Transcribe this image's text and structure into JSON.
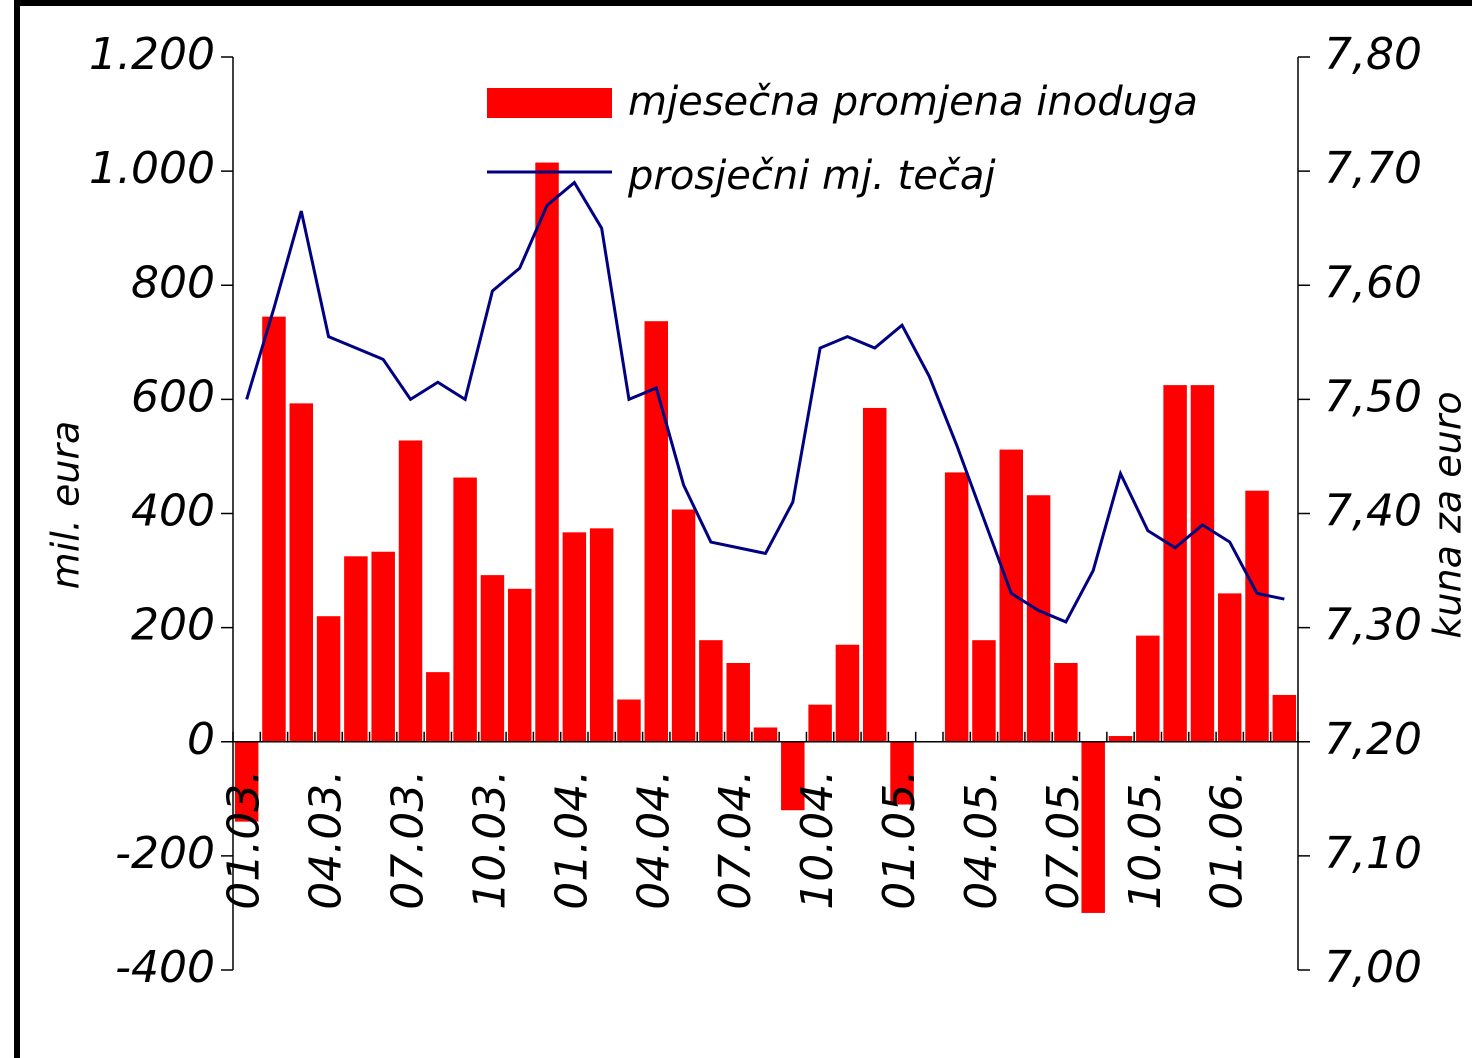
{
  "chart_data": {
    "type": "bar_line",
    "categories": [
      "01.03.",
      null,
      null,
      "04.03.",
      null,
      null,
      "07.03.",
      null,
      null,
      "10.03.",
      null,
      null,
      "01.04.",
      null,
      null,
      "04.04.",
      null,
      null,
      "07.04.",
      null,
      null,
      "10.04.",
      null,
      null,
      "01.05.",
      null,
      null,
      "04.05.",
      null,
      null,
      "07.05.",
      null,
      null,
      "10.05.",
      null,
      null,
      "01.06.",
      null,
      null
    ],
    "series": [
      {
        "name": "mjesečna promjena inoduga",
        "color": "#ff0000",
        "axis": "y",
        "values": [
          -140,
          745,
          593,
          220,
          325,
          333,
          528,
          122,
          463,
          292,
          268,
          1015,
          367,
          374,
          74,
          737,
          407,
          178,
          138,
          25,
          -120,
          65,
          170,
          585,
          -110,
          0,
          472,
          178,
          512,
          432,
          138,
          -300,
          10,
          186,
          625,
          625,
          260,
          440,
          82
        ]
      },
      {
        "name": "prosječni mj. tečaj",
        "color": "#000080",
        "axis": "y2",
        "values": [
          7.5,
          7.58,
          7.665,
          7.555,
          7.545,
          7.535,
          7.5,
          7.515,
          7.5,
          7.595,
          7.615,
          7.67,
          7.69,
          7.65,
          7.5,
          7.51,
          7.425,
          7.375,
          7.37,
          7.365,
          7.41,
          7.545,
          7.555,
          7.545,
          7.565,
          7.52,
          7.46,
          7.395,
          7.33,
          7.315,
          7.305,
          7.35,
          7.435,
          7.385,
          7.37,
          7.39,
          7.375,
          7.33,
          7.325
        ]
      }
    ],
    "y_label": "mil. eura",
    "y2_label": "kuna za euro",
    "ylim": [
      -400,
      1200
    ],
    "yticks": [
      -400,
      -200,
      0,
      200,
      400,
      600,
      800,
      {
        "value": 1000,
        "label": "1.000"
      },
      {
        "value": 1200,
        "label": "1.200"
      }
    ],
    "y2lim": [
      7.0,
      7.8
    ],
    "y2ticks": [
      {
        "value": 7.0,
        "label": "7,00"
      },
      {
        "value": 7.1,
        "label": "7,10"
      },
      {
        "value": 7.2,
        "label": "7,20"
      },
      {
        "value": 7.3,
        "label": "7,30"
      },
      {
        "value": 7.4,
        "label": "7,40"
      },
      {
        "value": 7.5,
        "label": "7,50"
      },
      {
        "value": 7.6,
        "label": "7,60"
      },
      {
        "value": 7.7,
        "label": "7,70"
      },
      {
        "value": 7.8,
        "label": "7,80"
      }
    ]
  }
}
